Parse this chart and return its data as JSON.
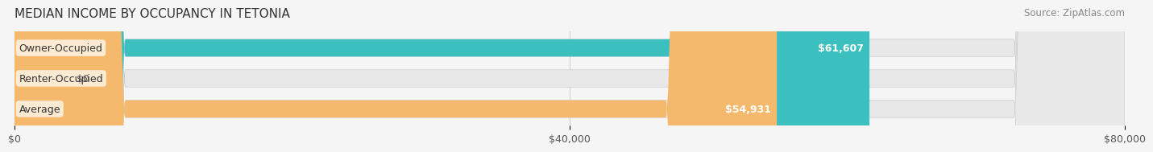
{
  "title": "MEDIAN INCOME BY OCCUPANCY IN TETONIA",
  "source": "Source: ZipAtlas.com",
  "categories": [
    "Owner-Occupied",
    "Renter-Occupied",
    "Average"
  ],
  "values": [
    61607,
    0,
    54931
  ],
  "bar_colors": [
    "#3bbfbf",
    "#c9aed6",
    "#f5b96e"
  ],
  "bar_labels": [
    "$61,607",
    "$0",
    "$54,931"
  ],
  "xlim": [
    0,
    80000
  ],
  "xticks": [
    0,
    40000,
    80000
  ],
  "xticklabels": [
    "$0",
    "$40,000",
    "$80,000"
  ],
  "background_color": "#f0f0f0",
  "bar_bg_color": "#e8e8e8",
  "title_fontsize": 11,
  "source_fontsize": 8.5,
  "label_fontsize": 9,
  "tick_fontsize": 9
}
